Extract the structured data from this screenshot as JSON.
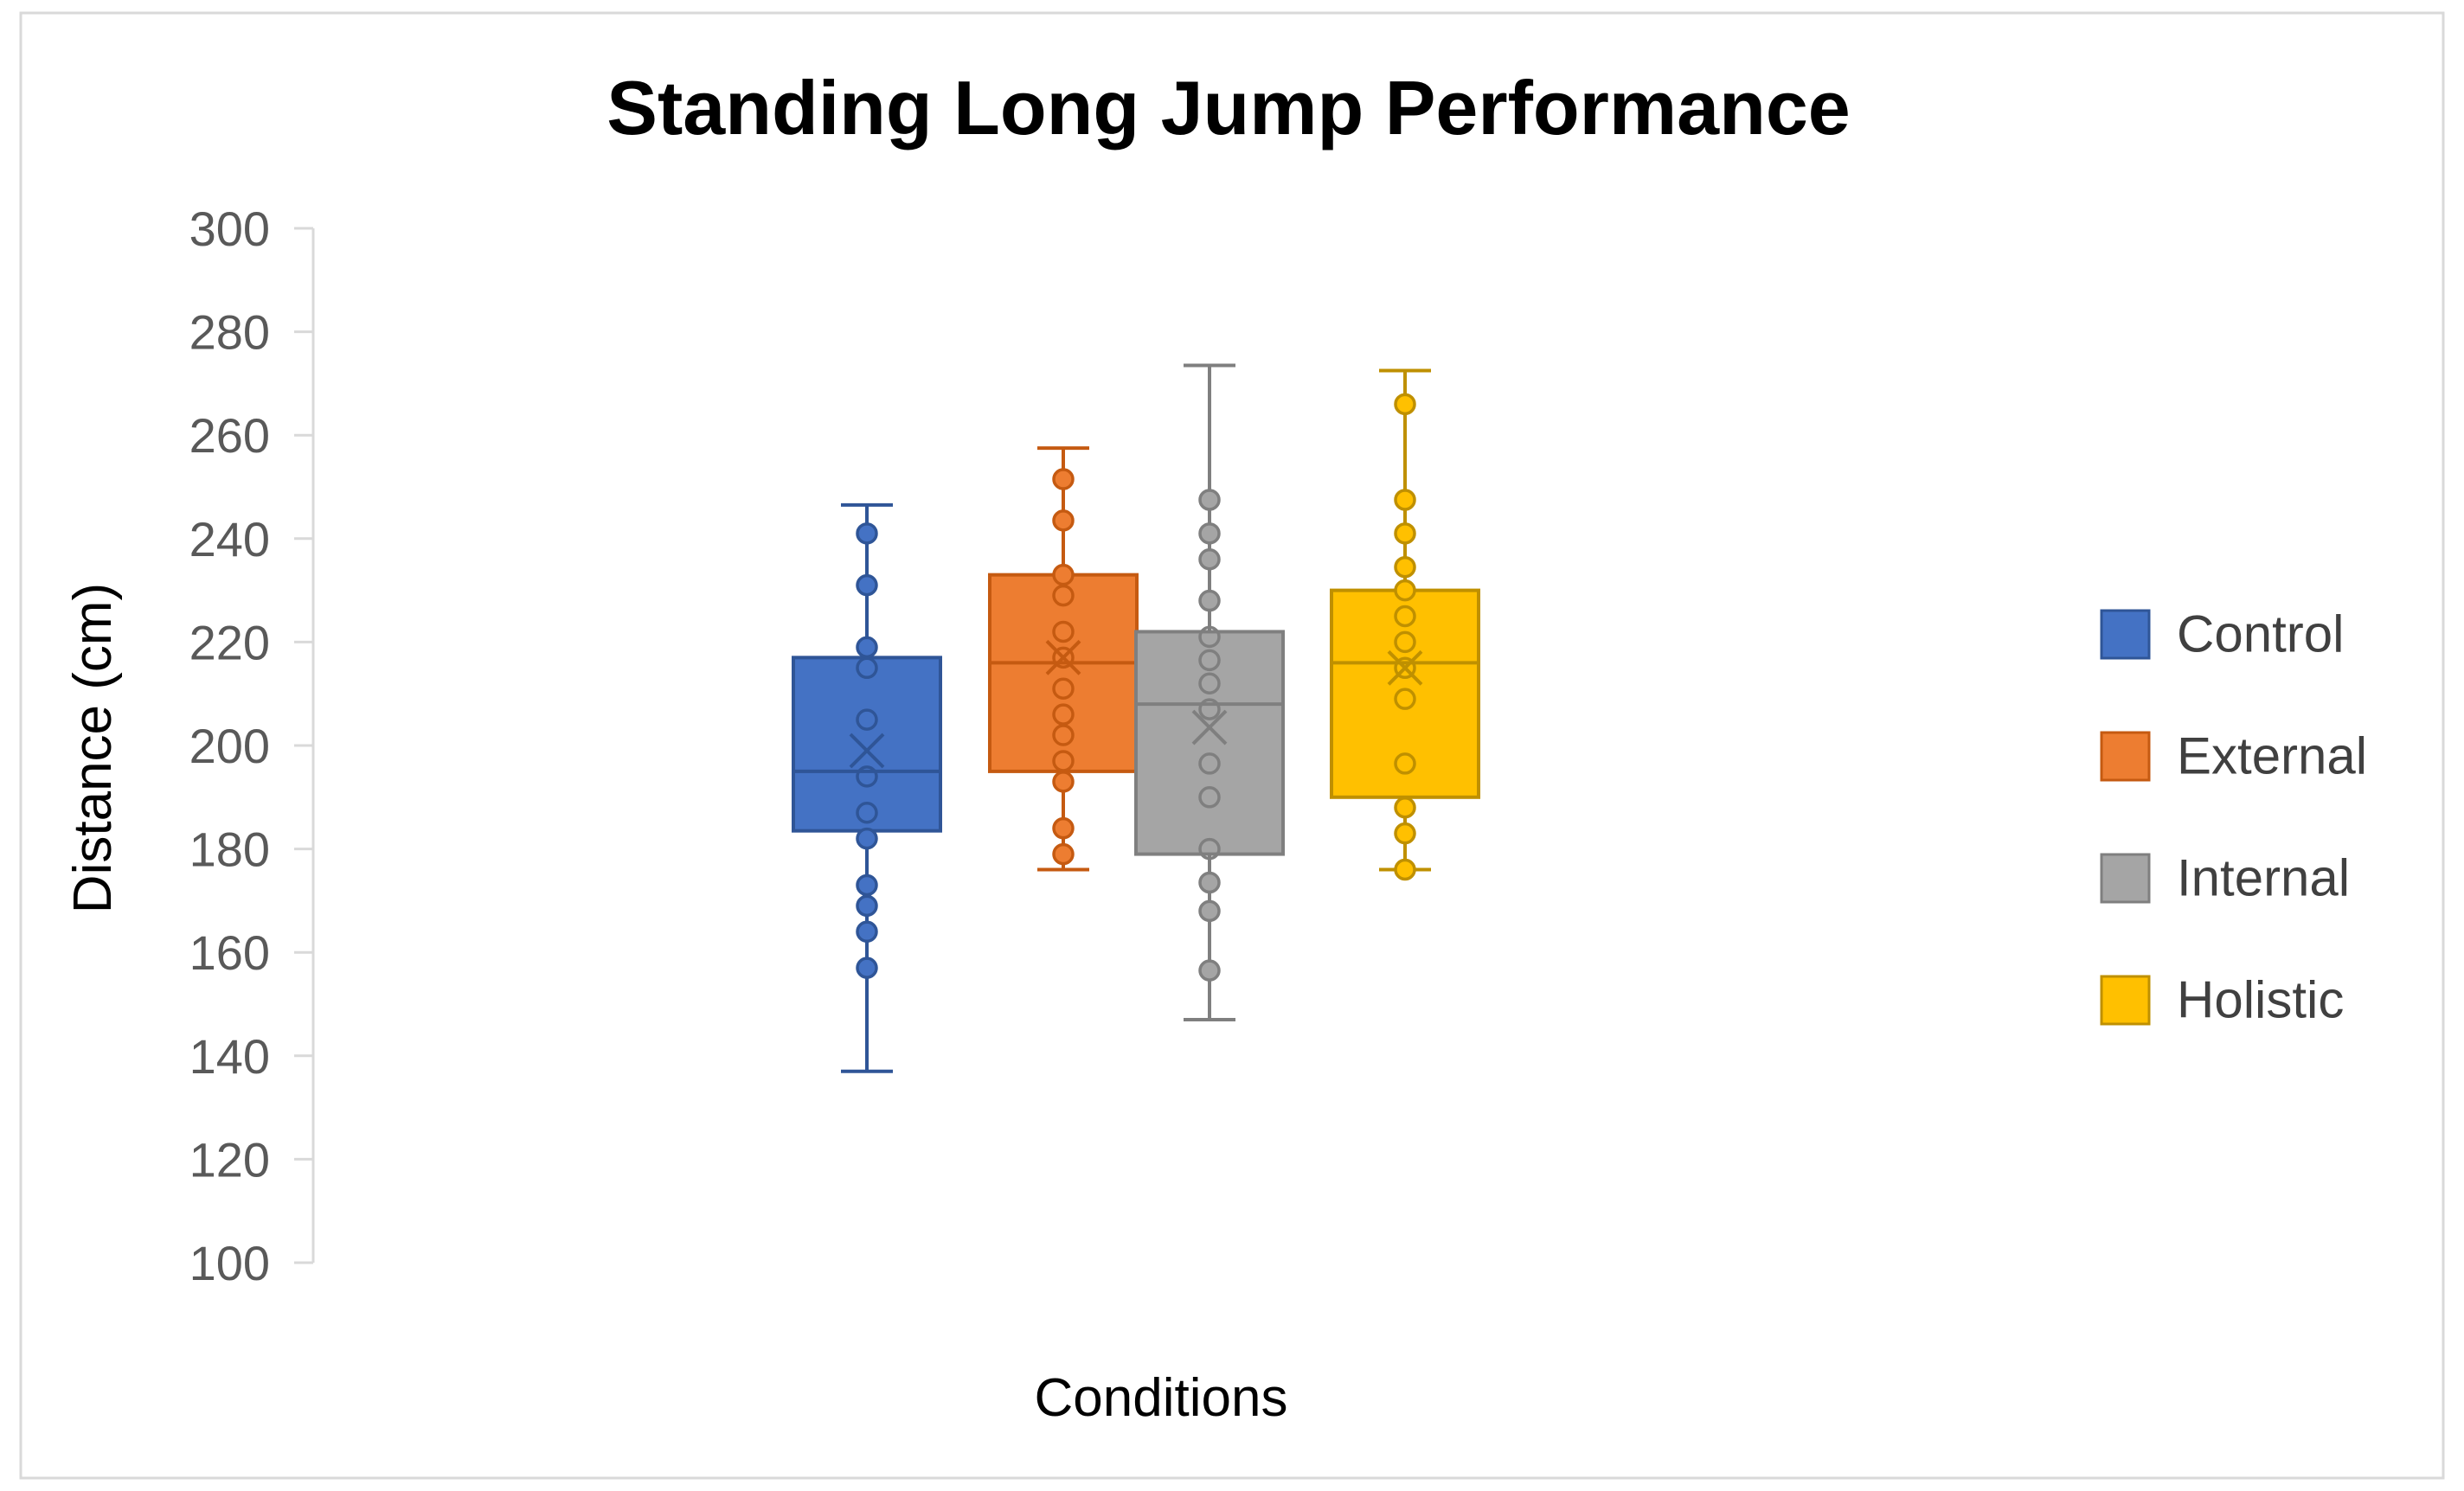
{
  "chart_data": {
    "type": "box",
    "title": "Standing Long Jump Performance",
    "xlabel": "Conditions",
    "ylabel": "Distance (cm)",
    "ylim": [
      100,
      300
    ],
    "yticks": [
      100,
      120,
      140,
      160,
      180,
      200,
      220,
      240,
      260,
      280,
      300
    ],
    "grid": false,
    "legend_position": "right",
    "series": [
      {
        "name": "Control",
        "color": "#4472C4",
        "stroke": "#2F5597",
        "whisker_min": 137,
        "q1": 183.5,
        "median": 195,
        "q3": 217,
        "whisker_max": 246.5,
        "mean": 199,
        "points": [
          157,
          164,
          169,
          173,
          182,
          187,
          194,
          205,
          215,
          219,
          231,
          241
        ]
      },
      {
        "name": "External",
        "color": "#ED7D31",
        "stroke": "#C55A11",
        "whisker_min": 176,
        "q1": 195,
        "median": 216,
        "q3": 233,
        "whisker_max": 257.5,
        "mean": 217,
        "points": [
          179,
          184,
          193,
          197,
          202,
          206,
          211,
          217,
          222,
          229,
          233,
          243.5,
          251.5
        ]
      },
      {
        "name": "Internal",
        "color": "#A5A5A5",
        "stroke": "#7F7F7F",
        "whisker_min": 147,
        "q1": 179,
        "median": 208,
        "q3": 222,
        "whisker_max": 273.5,
        "mean": 203.5,
        "points": [
          156.5,
          168,
          173.5,
          180,
          190,
          196.5,
          207,
          212,
          216.5,
          221,
          228,
          236,
          241,
          247.5
        ]
      },
      {
        "name": "Holistic",
        "color": "#FFC000",
        "stroke": "#BF9000",
        "whisker_min": 176,
        "q1": 190,
        "median": 216,
        "q3": 230,
        "whisker_max": 272.5,
        "mean": 215,
        "points": [
          176,
          183,
          188,
          196.5,
          209,
          215,
          220,
          225,
          230,
          234.5,
          241,
          247.5,
          266
        ]
      }
    ]
  }
}
